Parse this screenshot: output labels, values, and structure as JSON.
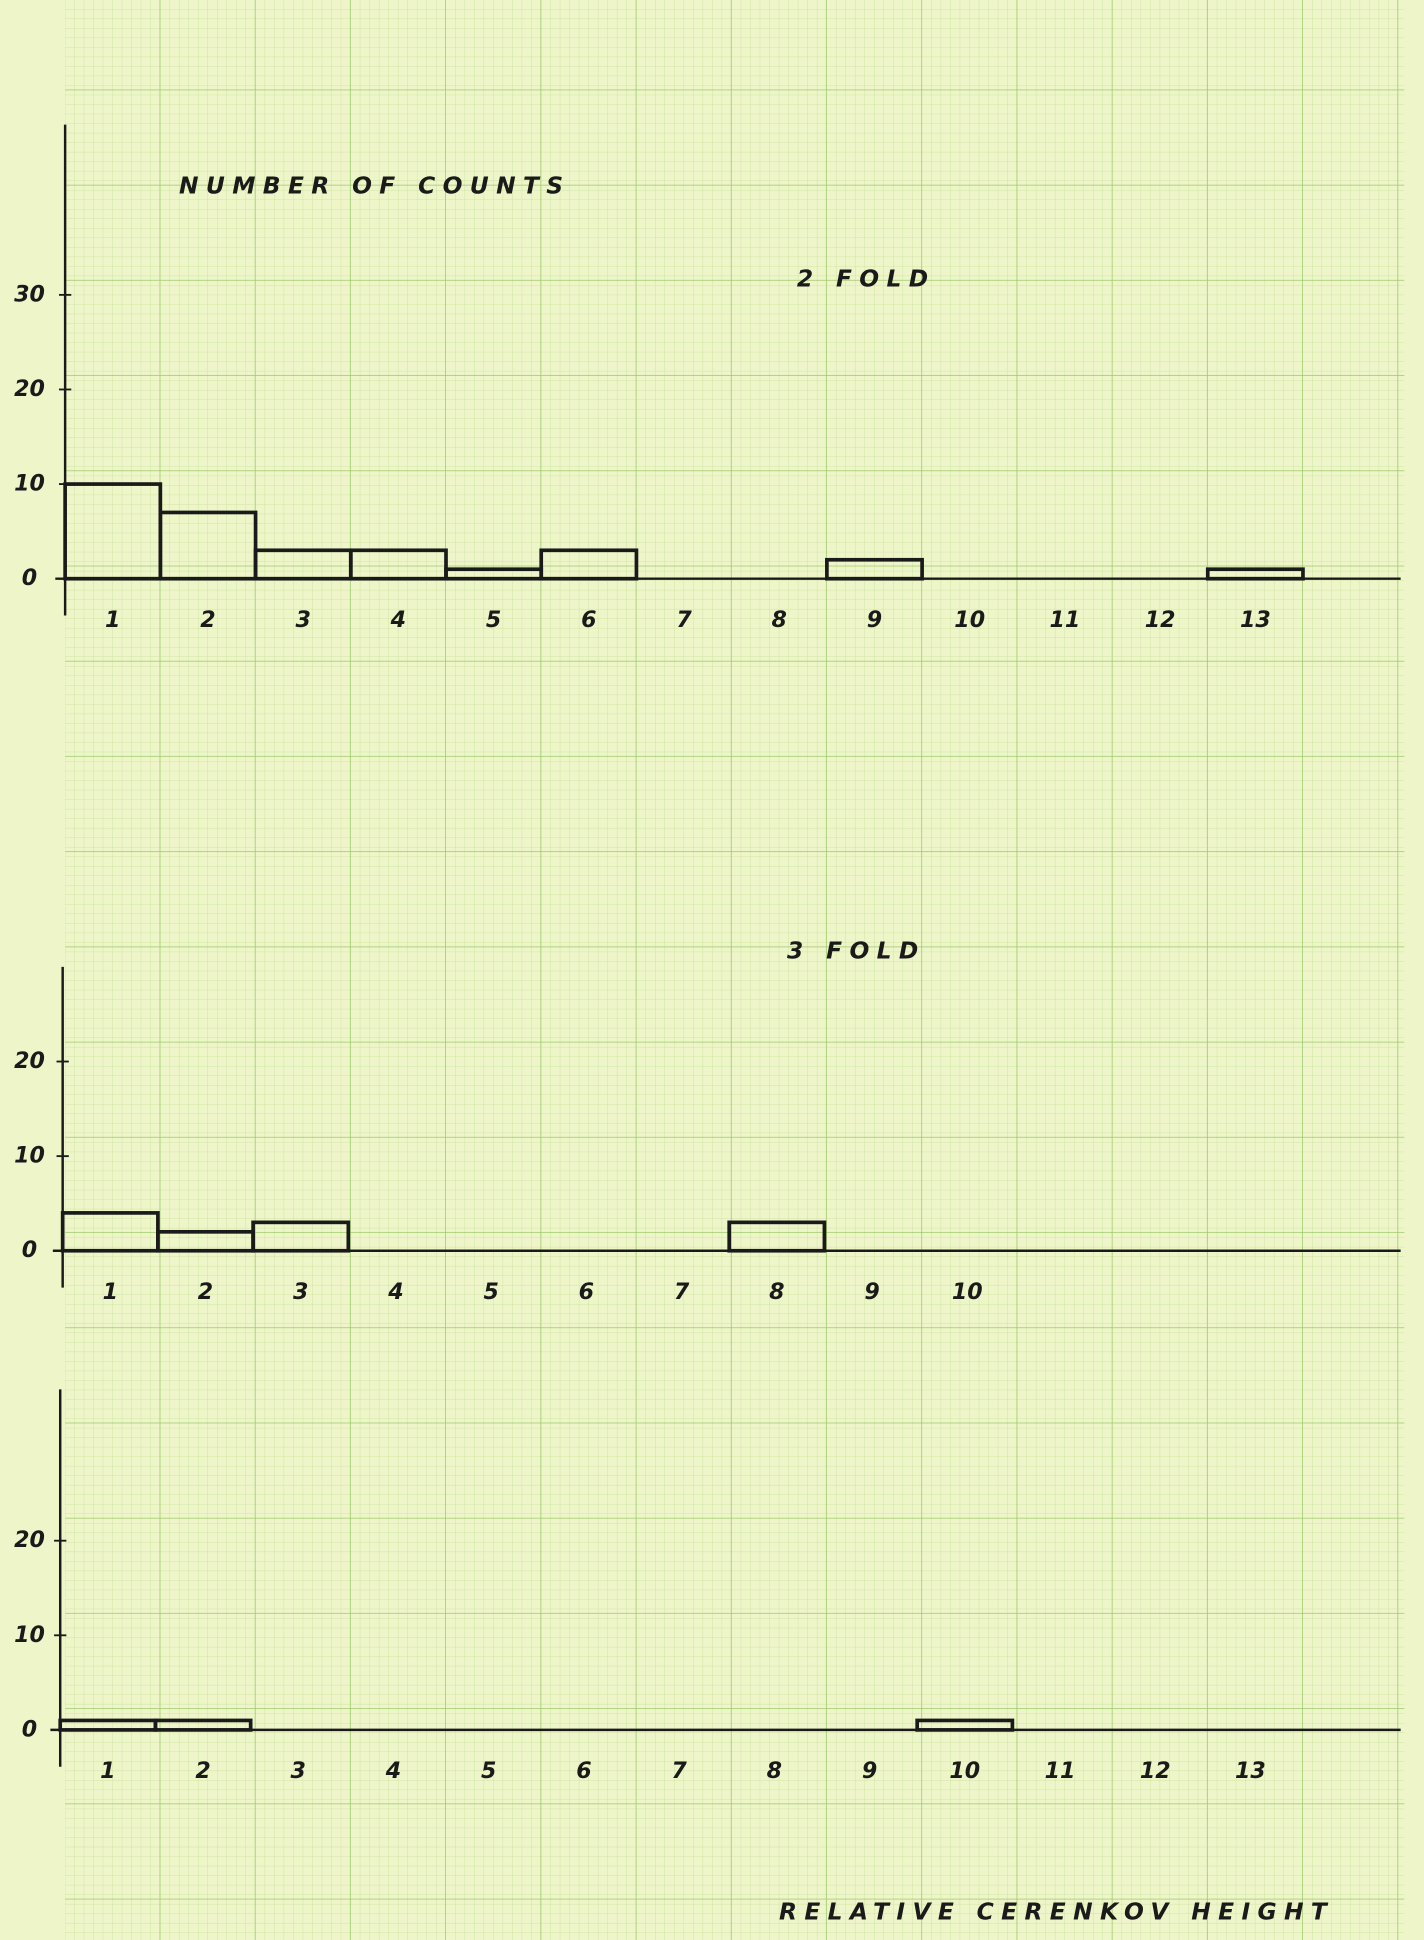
{
  "chart_data": [
    {
      "type": "bar",
      "title": "2 FOLD",
      "y_label": "NUMBER OF COUNTS",
      "categories": [
        "1",
        "2",
        "3",
        "4",
        "5",
        "6",
        "7",
        "8",
        "9",
        "10",
        "11",
        "12",
        "13"
      ],
      "values": [
        10,
        7,
        3,
        3,
        1,
        3,
        0,
        0,
        2,
        0,
        0,
        0,
        1
      ],
      "color": "#1a1a1a",
      "ylim": [
        0,
        48
      ],
      "yticks": [
        0,
        10,
        20,
        30
      ]
    },
    {
      "type": "bar",
      "title": "3 FOLD",
      "categories": [
        "1",
        "2",
        "3",
        "4",
        "5",
        "6",
        "7",
        "8",
        "9",
        "10"
      ],
      "values": [
        4,
        2,
        3,
        0,
        0,
        0,
        0,
        3,
        0,
        0
      ],
      "color": "#1a1a1a",
      "ylim": [
        0,
        30
      ],
      "yticks": [
        0,
        10,
        20
      ]
    },
    {
      "type": "bar",
      "x_label": "RELATIVE CERENKOV HEIGHT",
      "categories": [
        "1",
        "2",
        "3",
        "4",
        "5",
        "6",
        "7",
        "8",
        "9",
        "10",
        "11",
        "12",
        "13"
      ],
      "values": [
        1,
        1,
        0,
        0,
        0,
        0,
        0,
        0,
        0,
        1,
        0,
        0,
        0
      ],
      "color": "#1a1a1a",
      "ylim": [
        0,
        36
      ],
      "yticks": [
        0,
        10,
        20
      ]
    }
  ]
}
